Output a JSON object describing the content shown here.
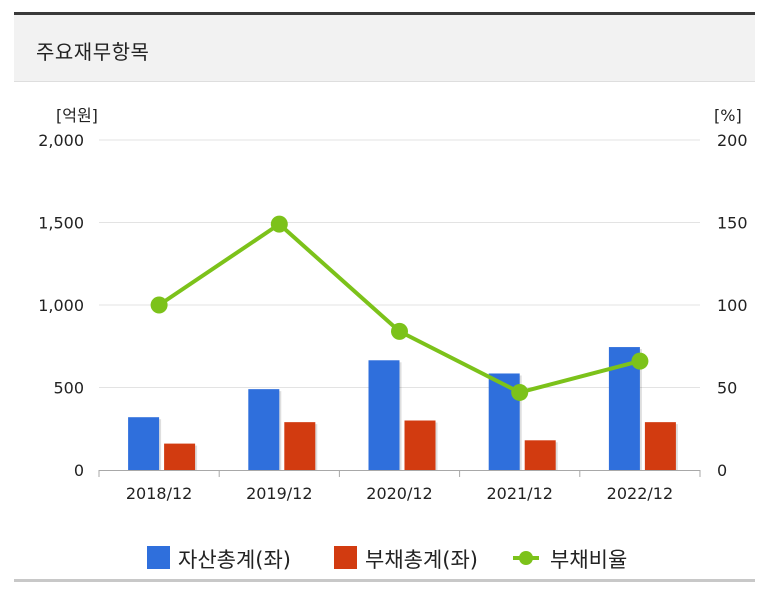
{
  "section": {
    "title": "주요재무항목"
  },
  "chart_data": {
    "type": "bar",
    "title": "",
    "categories": [
      "2018/12",
      "2019/12",
      "2020/12",
      "2021/12",
      "2022/12"
    ],
    "y_left": {
      "unit": "[억원]",
      "range": [
        0,
        2000
      ],
      "ticks": [
        "0",
        "500",
        "1,000",
        "1,500",
        "2,000"
      ],
      "tick_values": [
        0,
        500,
        1000,
        1500,
        2000
      ]
    },
    "y_right": {
      "unit": "[%]",
      "range": [
        0,
        200
      ],
      "ticks": [
        "0",
        "50",
        "100",
        "150",
        "200"
      ],
      "tick_values": [
        0,
        50,
        100,
        150,
        200
      ]
    },
    "grid": true,
    "legend_position": "bottom",
    "series": [
      {
        "name": "자산총계(좌)",
        "type": "bar",
        "axis": "left",
        "color": "#2f6fdc",
        "values": [
          320,
          490,
          665,
          585,
          745
        ]
      },
      {
        "name": "부채총계(좌)",
        "type": "bar",
        "axis": "left",
        "color": "#d23b10",
        "values": [
          160,
          290,
          300,
          180,
          290
        ]
      },
      {
        "name": "부채비율",
        "type": "line",
        "axis": "right",
        "color": "#7cc21a",
        "values": [
          100,
          149,
          84,
          47,
          66
        ]
      }
    ]
  }
}
